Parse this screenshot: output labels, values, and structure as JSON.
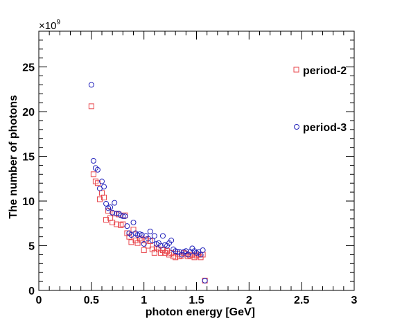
{
  "chart_data": {
    "type": "scatter",
    "xlabel": "photon energy [GeV]",
    "ylabel": "The number of photons",
    "y_multiplier": "×10",
    "y_multiplier_exponent": "9",
    "xlim": [
      0,
      3
    ],
    "ylim": [
      0,
      29
    ],
    "x_ticks": [
      0,
      0.5,
      1,
      1.5,
      2,
      2.5,
      3
    ],
    "x_tick_labels": [
      "0",
      "0.5",
      "1",
      "1.5",
      "2",
      "2.5",
      "3"
    ],
    "y_ticks": [
      0,
      5,
      10,
      15,
      20,
      25
    ],
    "y_tick_labels": [
      "0",
      "5",
      "10",
      "15",
      "20",
      "25"
    ],
    "grid": false,
    "legend_placement": "right",
    "series": [
      {
        "name": "period-2",
        "color": "#e8474d",
        "marker": "open-square",
        "x": [
          0.5,
          0.52,
          0.54,
          0.56,
          0.58,
          0.6,
          0.62,
          0.64,
          0.66,
          0.68,
          0.7,
          0.72,
          0.74,
          0.76,
          0.78,
          0.8,
          0.82,
          0.84,
          0.86,
          0.88,
          0.9,
          0.92,
          0.94,
          0.96,
          0.98,
          1.0,
          1.02,
          1.04,
          1.06,
          1.08,
          1.1,
          1.12,
          1.14,
          1.16,
          1.18,
          1.2,
          1.22,
          1.24,
          1.26,
          1.28,
          1.3,
          1.32,
          1.34,
          1.36,
          1.38,
          1.4,
          1.42,
          1.44,
          1.46,
          1.48,
          1.5,
          1.52,
          1.54,
          1.56,
          1.58
        ],
        "y": [
          20.6,
          13.0,
          12.2,
          12.0,
          10.2,
          10.9,
          10.4,
          7.9,
          8.9,
          8.1,
          7.6,
          8.6,
          7.4,
          8.5,
          7.3,
          7.4,
          8.4,
          6.4,
          6.0,
          5.4,
          6.8,
          5.6,
          5.3,
          5.8,
          5.6,
          4.5,
          5.7,
          5.0,
          5.5,
          4.6,
          4.2,
          4.8,
          4.6,
          4.2,
          4.5,
          4.2,
          4.4,
          4.0,
          4.2,
          3.8,
          3.7,
          4.1,
          3.8,
          3.9,
          4.2,
          4.1,
          3.8,
          3.9,
          4.0,
          3.7,
          3.9,
          4.0,
          3.7,
          4.0,
          1.1
        ]
      },
      {
        "name": "period-3",
        "color": "#2222bb",
        "marker": "open-circle",
        "x": [
          0.5,
          0.52,
          0.54,
          0.56,
          0.58,
          0.6,
          0.62,
          0.64,
          0.66,
          0.68,
          0.7,
          0.72,
          0.74,
          0.76,
          0.78,
          0.8,
          0.82,
          0.84,
          0.86,
          0.88,
          0.9,
          0.92,
          0.94,
          0.96,
          0.98,
          1.0,
          1.02,
          1.04,
          1.06,
          1.08,
          1.1,
          1.12,
          1.14,
          1.16,
          1.18,
          1.2,
          1.22,
          1.24,
          1.26,
          1.28,
          1.3,
          1.32,
          1.34,
          1.36,
          1.38,
          1.4,
          1.42,
          1.44,
          1.46,
          1.48,
          1.5,
          1.52,
          1.54,
          1.56,
          1.58
        ],
        "y": [
          23.0,
          14.5,
          13.7,
          13.5,
          11.4,
          12.2,
          11.6,
          9.7,
          9.2,
          9.3,
          8.7,
          9.8,
          8.6,
          8.6,
          8.4,
          8.3,
          8.3,
          7.2,
          6.4,
          6.2,
          7.6,
          6.4,
          6.2,
          6.3,
          6.2,
          5.2,
          6.1,
          5.8,
          6.6,
          5.6,
          6.1,
          5.2,
          5.3,
          5.0,
          6.1,
          5.1,
          5.0,
          5.3,
          5.6,
          4.6,
          4.4,
          4.3,
          4.3,
          4.0,
          4.3,
          4.4,
          4.0,
          4.3,
          4.7,
          4.4,
          4.2,
          4.3,
          4.0,
          4.5,
          1.1
        ]
      }
    ]
  }
}
